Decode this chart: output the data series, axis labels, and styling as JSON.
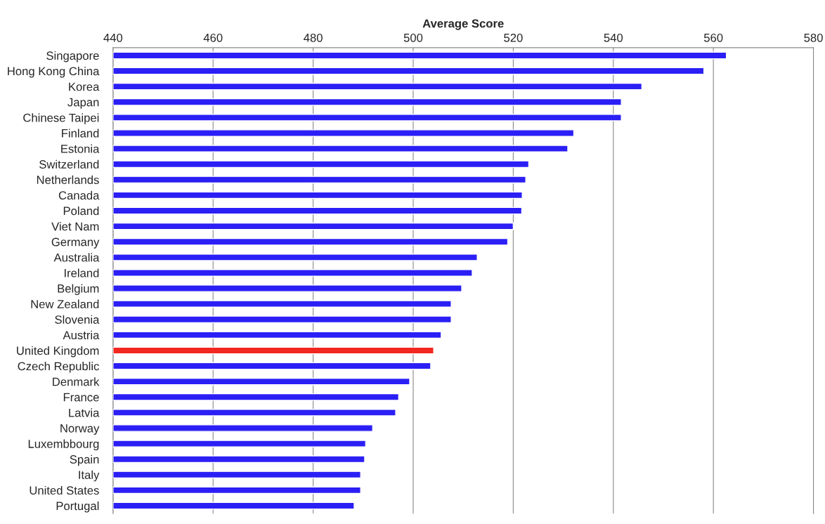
{
  "chart_data": {
    "type": "bar",
    "orientation": "horizontal",
    "xlabel": "Average Score",
    "categories": [
      "Singapore",
      "Hong Kong China",
      "Korea",
      "Japan",
      "Chinese Taipei",
      "Finland",
      "Estonia",
      "Switzerland",
      "Netherlands",
      "Canada",
      "Poland",
      "Viet Nam",
      "Germany",
      "Australia",
      "Ireland",
      "Belgium",
      "New Zealand",
      "Slovenia",
      "Austria",
      "United Kingdom",
      "Czech Republic",
      "Denmark",
      "France",
      "Latvia",
      "Norway",
      "Luxembbourg",
      "Spain",
      "Italy",
      "United States",
      "Portugal"
    ],
    "values": [
      562.6,
      558.1,
      545.7,
      541.6,
      541.6,
      532.1,
      530.9,
      523.1,
      522.5,
      521.8,
      521.7,
      520.0,
      518.9,
      512.8,
      511.8,
      509.7,
      507.6,
      507.6,
      505.6,
      504.1,
      503.5,
      499.3,
      497.1,
      496.5,
      491.9,
      490.5,
      490.3,
      489.5,
      489.5,
      488.2
    ],
    "colors": [
      "#2b1ff5",
      "#2b1ff5",
      "#2b1ff5",
      "#2b1ff5",
      "#2b1ff5",
      "#2b1ff5",
      "#2b1ff5",
      "#2b1ff5",
      "#2b1ff5",
      "#2b1ff5",
      "#2b1ff5",
      "#2b1ff5",
      "#2b1ff5",
      "#2b1ff5",
      "#2b1ff5",
      "#2b1ff5",
      "#2b1ff5",
      "#2b1ff5",
      "#2b1ff5",
      "#f2271f",
      "#2b1ff5",
      "#2b1ff5",
      "#2b1ff5",
      "#2b1ff5",
      "#2b1ff5",
      "#2b1ff5",
      "#2b1ff5",
      "#2b1ff5",
      "#2b1ff5",
      "#2b1ff5"
    ],
    "xlim": [
      440,
      580
    ],
    "xticks": [
      440,
      460,
      480,
      500,
      520,
      540,
      560,
      580
    ],
    "grid": "x",
    "legend": false
  }
}
